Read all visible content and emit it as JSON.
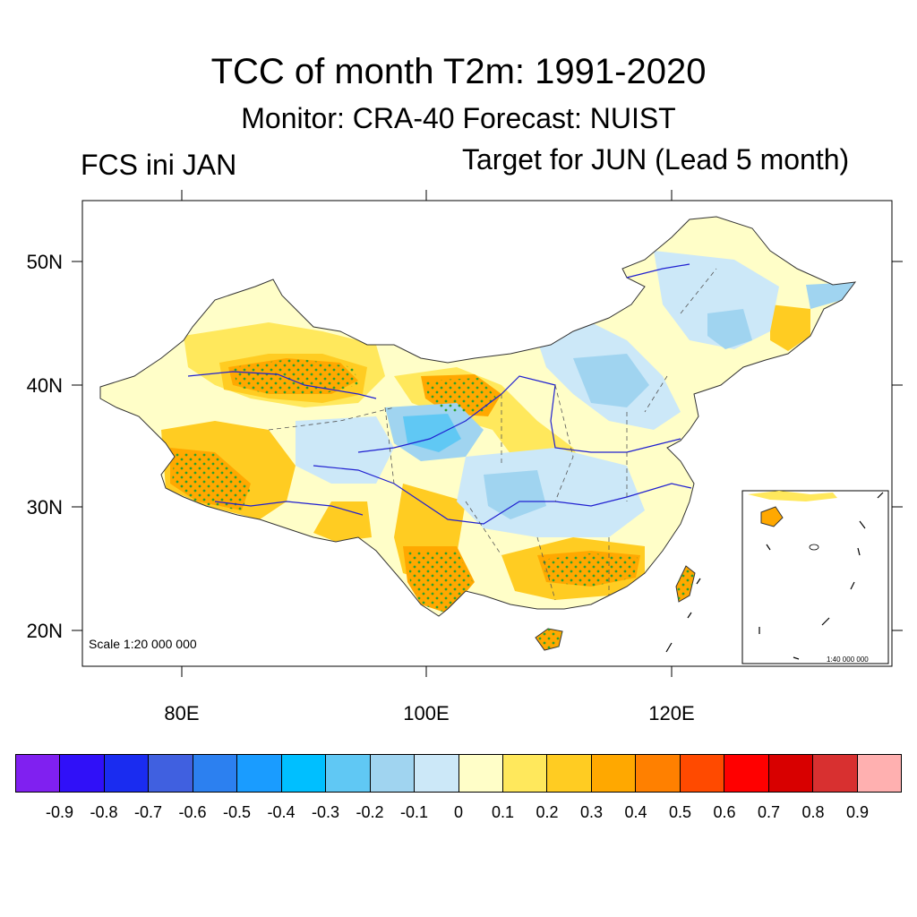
{
  "title": "TCC of month T2m: 1991-2020",
  "subtitle": "Monitor: CRA-40   Forecast: NUIST",
  "left_label": "FCS ini JAN",
  "right_label": "Target for JUN (Lead 5 month)",
  "lat_labels": [
    "50N",
    "40N",
    "30N",
    "20N"
  ],
  "lon_labels": [
    "80E",
    "100E",
    "120E"
  ],
  "scale_label": "Scale 1:20 000 000",
  "inset_scale_label": "1:40 000 000",
  "colorbar": {
    "colors": [
      "#8020f0",
      "#3010f8",
      "#1a2cf0",
      "#4060e0",
      "#2c80f0",
      "#1a9cff",
      "#00bfff",
      "#60c8f4",
      "#a0d4f0",
      "#cce8f8",
      "#fffec8",
      "#ffe85c",
      "#ffcc22",
      "#ffa800",
      "#ff8000",
      "#ff4a00",
      "#ff0000",
      "#d80000",
      "#d83030",
      "#ffb0b0"
    ],
    "labels": [
      "-0.9",
      "-0.8",
      "-0.7",
      "-0.6",
      "-0.5",
      "-0.4",
      "-0.3",
      "-0.2",
      "-0.1",
      "0",
      "0.1",
      "0.2",
      "0.3",
      "0.4",
      "0.5",
      "0.6",
      "0.7",
      "0.8",
      "0.9"
    ]
  },
  "colors": {
    "border": "#333333",
    "river": "#2020d0",
    "stipple": "#2ca02c"
  }
}
